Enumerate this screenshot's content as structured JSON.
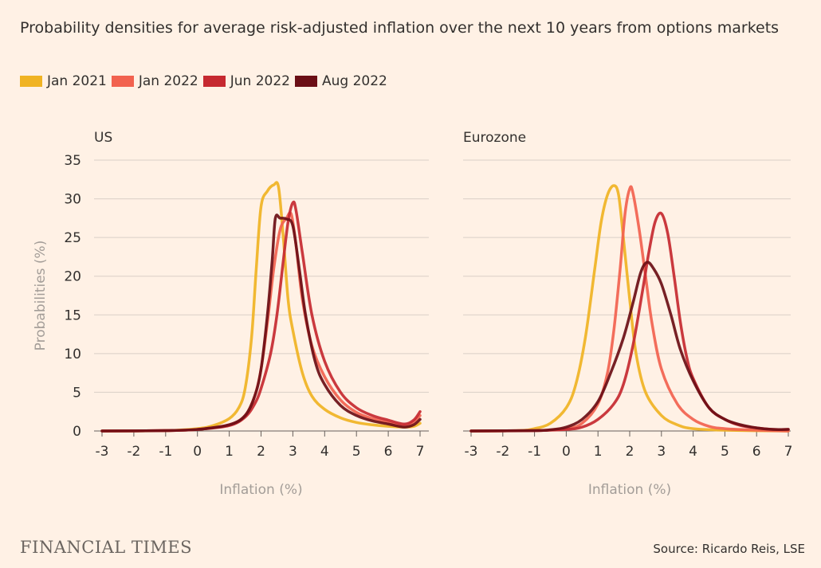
{
  "title": "Probability densities for average risk-adjusted inflation over the next 10 years from options markets",
  "source": "Source: Ricardo Reis, LSE",
  "logo": "FINANCIAL TIMES",
  "legend": [
    {
      "name": "Jan 2021",
      "color": "#f0b323"
    },
    {
      "name": "Jan 2022",
      "color": "#f2624f"
    },
    {
      "name": "Jun 2022",
      "color": "#c62930"
    },
    {
      "name": "Aug 2022",
      "color": "#6b0e15"
    }
  ],
  "chart_data": [
    {
      "type": "line",
      "title": "US",
      "xlabel": "Inflation (%)",
      "ylabel": "Probabilities (%)",
      "xlim": [
        -3,
        7
      ],
      "ylim": [
        0,
        35
      ],
      "xticks": [
        -3,
        -2,
        -1,
        0,
        1,
        2,
        3,
        4,
        5,
        6,
        7
      ],
      "yticks": [
        0,
        5,
        10,
        15,
        20,
        25,
        30,
        35
      ],
      "grid": true,
      "series": [
        {
          "name": "Jan 2021",
          "color": "#f0b323",
          "points": [
            [
              -3,
              0
            ],
            [
              -1,
              0.05
            ],
            [
              0,
              0.3
            ],
            [
              0.5,
              0.7
            ],
            [
              1,
              1.6
            ],
            [
              1.3,
              3
            ],
            [
              1.5,
              5.5
            ],
            [
              1.7,
              12
            ],
            [
              1.85,
              21
            ],
            [
              2,
              29
            ],
            [
              2.2,
              31
            ],
            [
              2.4,
              31.8
            ],
            [
              2.55,
              31.5
            ],
            [
              2.7,
              25
            ],
            [
              2.85,
              17
            ],
            [
              3,
              13
            ],
            [
              3.3,
              7.5
            ],
            [
              3.6,
              4.5
            ],
            [
              4,
              2.8
            ],
            [
              4.5,
              1.7
            ],
            [
              5,
              1.1
            ],
            [
              5.5,
              0.8
            ],
            [
              6,
              0.6
            ],
            [
              6.5,
              0.5
            ],
            [
              6.8,
              0.6
            ],
            [
              7,
              1
            ]
          ]
        },
        {
          "name": "Jan 2022",
          "color": "#f2624f",
          "points": [
            [
              -3,
              0
            ],
            [
              -1,
              0.05
            ],
            [
              0,
              0.2
            ],
            [
              1,
              0.8
            ],
            [
              1.5,
              2
            ],
            [
              1.8,
              4.5
            ],
            [
              2,
              8
            ],
            [
              2.2,
              14
            ],
            [
              2.4,
              21
            ],
            [
              2.6,
              26
            ],
            [
              2.8,
              27.5
            ],
            [
              2.95,
              28
            ],
            [
              3.1,
              24
            ],
            [
              3.3,
              17
            ],
            [
              3.6,
              11
            ],
            [
              4,
              7
            ],
            [
              4.5,
              4
            ],
            [
              5,
              2.4
            ],
            [
              5.5,
              1.6
            ],
            [
              6,
              1.1
            ],
            [
              6.5,
              0.7
            ],
            [
              6.8,
              1.2
            ],
            [
              7,
              2
            ]
          ]
        },
        {
          "name": "Jun 2022",
          "color": "#c62930",
          "points": [
            [
              -3,
              0
            ],
            [
              -1,
              0.05
            ],
            [
              0,
              0.2
            ],
            [
              1,
              0.7
            ],
            [
              1.5,
              1.8
            ],
            [
              1.8,
              3.5
            ],
            [
              2,
              5.5
            ],
            [
              2.3,
              10
            ],
            [
              2.5,
              15
            ],
            [
              2.7,
              22
            ],
            [
              2.85,
              27
            ],
            [
              3,
              29.5
            ],
            [
              3.1,
              28.5
            ],
            [
              3.3,
              23
            ],
            [
              3.6,
              15
            ],
            [
              4,
              9
            ],
            [
              4.5,
              5
            ],
            [
              5,
              3
            ],
            [
              5.5,
              2
            ],
            [
              6,
              1.4
            ],
            [
              6.5,
              0.9
            ],
            [
              6.8,
              1.4
            ],
            [
              7,
              2.5
            ]
          ]
        },
        {
          "name": "Aug 2022",
          "color": "#6b0e15",
          "points": [
            [
              -3,
              0
            ],
            [
              -1,
              0.05
            ],
            [
              0,
              0.2
            ],
            [
              1,
              0.8
            ],
            [
              1.5,
              2
            ],
            [
              1.8,
              4.5
            ],
            [
              2,
              8
            ],
            [
              2.2,
              15
            ],
            [
              2.35,
              22
            ],
            [
              2.45,
              27.5
            ],
            [
              2.6,
              27.5
            ],
            [
              2.8,
              27.4
            ],
            [
              3,
              26.5
            ],
            [
              3.2,
              21
            ],
            [
              3.4,
              15
            ],
            [
              3.7,
              9
            ],
            [
              4,
              6
            ],
            [
              4.5,
              3.3
            ],
            [
              5,
              2
            ],
            [
              5.5,
              1.3
            ],
            [
              6,
              0.9
            ],
            [
              6.5,
              0.5
            ],
            [
              6.8,
              0.8
            ],
            [
              7,
              1.5
            ]
          ]
        }
      ]
    },
    {
      "type": "line",
      "title": "Eurozone",
      "xlabel": "Inflation (%)",
      "xlim": [
        -3,
        7
      ],
      "ylim": [
        0,
        35
      ],
      "xticks": [
        -3,
        -2,
        -1,
        0,
        1,
        2,
        3,
        4,
        5,
        6,
        7
      ],
      "yticks": [
        0,
        5,
        10,
        15,
        20,
        25,
        30,
        35
      ],
      "grid": true,
      "series": [
        {
          "name": "Jan 2021",
          "color": "#f0b323",
          "points": [
            [
              -3,
              0
            ],
            [
              -1.5,
              0.05
            ],
            [
              -1,
              0.3
            ],
            [
              -0.5,
              1
            ],
            [
              0,
              3
            ],
            [
              0.3,
              6
            ],
            [
              0.6,
              12
            ],
            [
              0.9,
              21
            ],
            [
              1.1,
              27
            ],
            [
              1.3,
              30.5
            ],
            [
              1.5,
              31.7
            ],
            [
              1.65,
              30.5
            ],
            [
              1.8,
              25
            ],
            [
              2,
              17
            ],
            [
              2.2,
              10
            ],
            [
              2.5,
              5
            ],
            [
              3,
              2
            ],
            [
              3.5,
              0.8
            ],
            [
              4,
              0.3
            ],
            [
              5,
              0.1
            ],
            [
              7,
              0
            ]
          ]
        },
        {
          "name": "Jan 2022",
          "color": "#f2624f",
          "points": [
            [
              -3,
              0
            ],
            [
              -1,
              0.05
            ],
            [
              0,
              0.3
            ],
            [
              0.5,
              1
            ],
            [
              1,
              3.5
            ],
            [
              1.3,
              7.5
            ],
            [
              1.5,
              13
            ],
            [
              1.7,
              21
            ],
            [
              1.85,
              28
            ],
            [
              2,
              31.3
            ],
            [
              2.1,
              30.8
            ],
            [
              2.3,
              26
            ],
            [
              2.5,
              20
            ],
            [
              2.7,
              14
            ],
            [
              3,
              8
            ],
            [
              3.5,
              3.5
            ],
            [
              4,
              1.5
            ],
            [
              4.5,
              0.6
            ],
            [
              5,
              0.3
            ],
            [
              6,
              0.1
            ],
            [
              7,
              0
            ]
          ]
        },
        {
          "name": "Jun 2022",
          "color": "#c62930",
          "points": [
            [
              -3,
              0
            ],
            [
              -1,
              0.05
            ],
            [
              0,
              0.2
            ],
            [
              0.5,
              0.5
            ],
            [
              1,
              1.5
            ],
            [
              1.5,
              3.5
            ],
            [
              1.8,
              6
            ],
            [
              2.1,
              11
            ],
            [
              2.4,
              18
            ],
            [
              2.6,
              23
            ],
            [
              2.8,
              27
            ],
            [
              3,
              28.1
            ],
            [
              3.2,
              25.5
            ],
            [
              3.4,
              20
            ],
            [
              3.6,
              14
            ],
            [
              3.8,
              9.5
            ],
            [
              4,
              6.8
            ],
            [
              4.5,
              3
            ],
            [
              5,
              1.5
            ],
            [
              5.5,
              0.7
            ],
            [
              6,
              0.4
            ],
            [
              6.5,
              0.2
            ],
            [
              7,
              0.2
            ]
          ]
        },
        {
          "name": "Aug 2022",
          "color": "#6b0e15",
          "points": [
            [
              -3,
              0
            ],
            [
              -1,
              0.05
            ],
            [
              -0.5,
              0.15
            ],
            [
              0,
              0.5
            ],
            [
              0.5,
              1.5
            ],
            [
              1,
              3.8
            ],
            [
              1.4,
              7.5
            ],
            [
              1.8,
              12
            ],
            [
              2.1,
              16.5
            ],
            [
              2.35,
              20.5
            ],
            [
              2.55,
              21.8
            ],
            [
              2.75,
              21
            ],
            [
              3,
              19
            ],
            [
              3.3,
              15
            ],
            [
              3.6,
              10.5
            ],
            [
              4,
              6.5
            ],
            [
              4.5,
              3
            ],
            [
              5,
              1.5
            ],
            [
              5.5,
              0.8
            ],
            [
              6,
              0.4
            ],
            [
              6.5,
              0.2
            ],
            [
              7,
              0.2
            ]
          ]
        }
      ]
    }
  ]
}
